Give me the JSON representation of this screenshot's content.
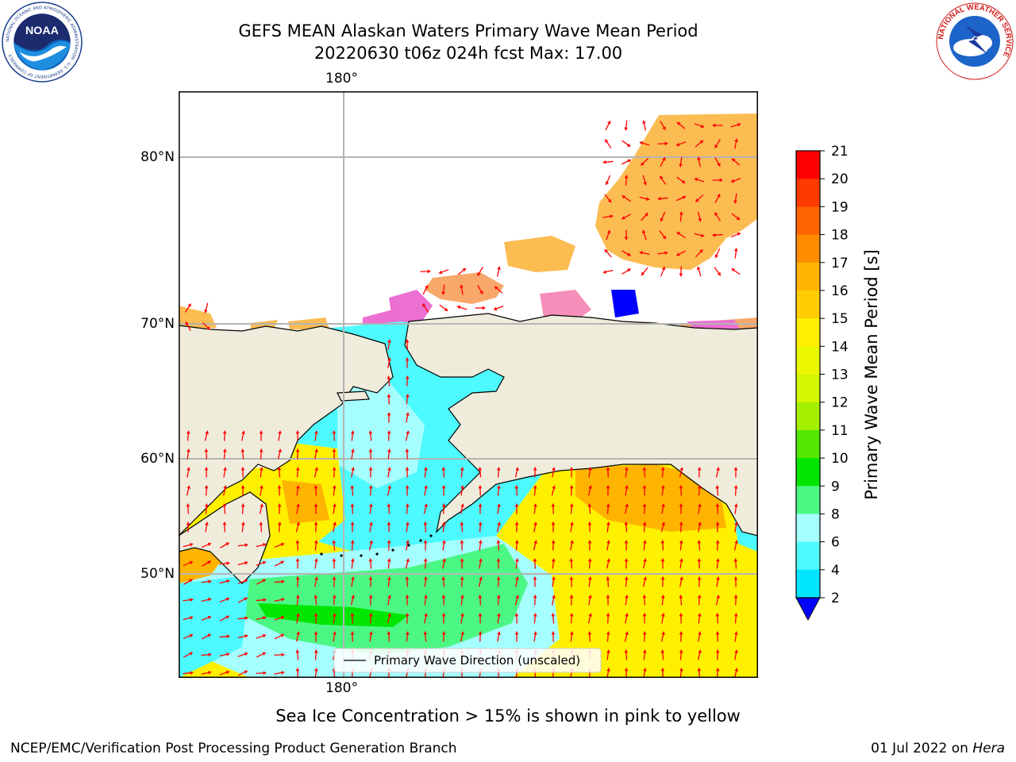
{
  "header": {
    "title_line1": "GEFS MEAN Alaskan Waters Primary Wave Mean Period",
    "title_line2": "20220630 t06z 024h fcst   Max: 17.00"
  },
  "logos": {
    "noaa_text": "NOAA",
    "noaa_ring_text": "NATIONAL OCEANIC AND ATMOSPHERIC ADMINISTRATION · U.S. DEPARTMENT OF COMMERCE",
    "nws_ring_text": "NATIONAL WEATHER SERVICE"
  },
  "map": {
    "lon_label_top": "180°",
    "lon_label_bottom": "180°",
    "lat_labels": [
      "80°N",
      "70°N",
      "60°N",
      "50°N"
    ],
    "legend_label": "Primary Wave Direction (unscaled)",
    "colors": {
      "land": "#efecdc",
      "grid": "#b4b4b4",
      "arrow": "#ff0000",
      "coast": "#000000"
    }
  },
  "colorbar": {
    "label": "Primary Wave Mean Period [s]",
    "ticks": [
      "2",
      "4",
      "6",
      "8",
      "9",
      "10",
      "11",
      "12",
      "13",
      "14",
      "15",
      "16",
      "17",
      "18",
      "19",
      "20",
      "21"
    ],
    "colors": [
      "#0000ff",
      "#0076f0",
      "#00e6ff",
      "#4cfaff",
      "#a5ffff",
      "#4cf884",
      "#00e600",
      "#52e800",
      "#a5f000",
      "#d4f700",
      "#ecf800",
      "#fff000",
      "#ffcd00",
      "#ffb400",
      "#ff8c00",
      "#ff6400",
      "#ff3a00",
      "#ff0000"
    ]
  },
  "footer": {
    "caption": "Sea Ice Concentration > 15% is shown in pink to yellow",
    "credit": "NCEP/EMC/Verification Post Processing Product Generation Branch",
    "date": "01 Jul 2022 on",
    "host": "Hera"
  }
}
